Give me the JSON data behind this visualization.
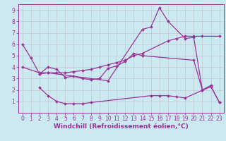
{
  "bg_color": "#cce8f0",
  "line_color": "#993399",
  "grid_color": "#bbbbbb",
  "series": [
    {
      "x": [
        0,
        1,
        2,
        3,
        10,
        14,
        15,
        16,
        17,
        19,
        20,
        21,
        22
      ],
      "y": [
        6.0,
        4.8,
        3.4,
        3.5,
        2.8,
        7.3,
        7.5,
        9.2,
        8.0,
        6.5,
        6.6,
        2.0,
        2.4
      ]
    },
    {
      "x": [
        0,
        2,
        3,
        4,
        5,
        6,
        7,
        8,
        9,
        10,
        11,
        12,
        13,
        14,
        17,
        18,
        19,
        20,
        21,
        23
      ],
      "y": [
        4.0,
        3.5,
        3.5,
        3.5,
        3.5,
        3.6,
        3.7,
        3.8,
        4.0,
        4.2,
        4.4,
        4.6,
        5.0,
        5.2,
        6.3,
        6.5,
        6.7,
        6.7,
        6.7,
        6.7
      ]
    },
    {
      "x": [
        2,
        3,
        4,
        5,
        6,
        7,
        8,
        9,
        10,
        11,
        12,
        13,
        14,
        20,
        21,
        22,
        23
      ],
      "y": [
        3.4,
        4.0,
        3.8,
        3.1,
        3.2,
        3.0,
        2.9,
        3.0,
        3.9,
        4.1,
        4.5,
        5.2,
        5.0,
        4.6,
        2.0,
        2.3,
        0.9
      ]
    },
    {
      "x": [
        2,
        3,
        4,
        5,
        6,
        7,
        8,
        15,
        16,
        17,
        18,
        19,
        22,
        23
      ],
      "y": [
        2.2,
        1.5,
        1.0,
        0.8,
        0.8,
        0.8,
        0.9,
        1.5,
        1.5,
        1.5,
        1.4,
        1.3,
        2.3,
        0.9
      ]
    }
  ],
  "xlim": [
    -0.5,
    23.5
  ],
  "ylim": [
    0,
    9.5
  ],
  "xticks": [
    0,
    1,
    2,
    3,
    4,
    5,
    6,
    7,
    8,
    9,
    10,
    11,
    12,
    13,
    14,
    15,
    16,
    17,
    18,
    19,
    20,
    21,
    22,
    23
  ],
  "yticks": [
    1,
    2,
    3,
    4,
    5,
    6,
    7,
    8,
    9
  ],
  "tick_fontsize": 5.5,
  "xlabel": "Windchill (Refroidissement éolien,°C)",
  "xlabel_fontsize": 6.5,
  "axis_label_color": "#993399",
  "marker": "D",
  "markersize": 2.0,
  "linewidth": 0.9
}
